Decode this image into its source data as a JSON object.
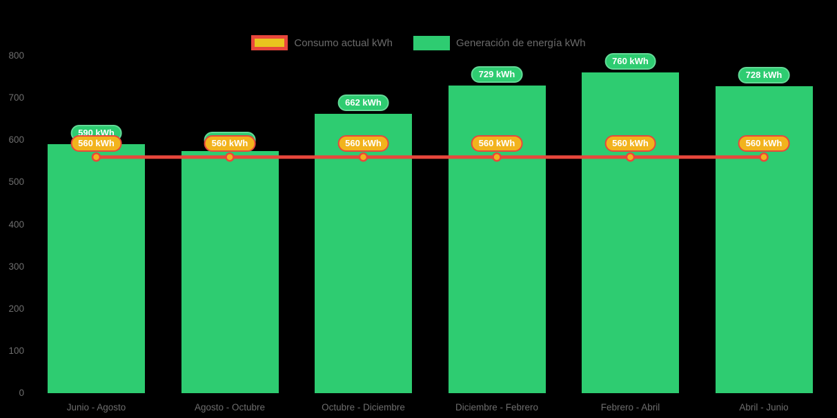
{
  "legend": {
    "items": [
      {
        "label": "Consumo actual kWh",
        "swatch": "red-bordered-amber-rect"
      },
      {
        "label": "Generación de energía kWh",
        "swatch": "green-rect"
      }
    ]
  },
  "chart_data": {
    "type": "bar+line",
    "unit": "kWh",
    "categories": [
      "Junio - Agosto",
      "Agosto - Octubre",
      "Octubre - Diciembre",
      "Diciembre - Febrero",
      "Febrero - Abril",
      "Abril - Junio"
    ],
    "series": [
      {
        "name": "Generación de energía kWh",
        "type": "bar",
        "values": [
          590,
          574,
          662,
          729,
          760,
          728
        ],
        "labels": [
          "590 kWh",
          "574 kWh",
          "662 kWh",
          "729 kWh",
          "760 kWh",
          "728 kWh"
        ],
        "color": "#2ecc71"
      },
      {
        "name": "Consumo actual kWh",
        "type": "line",
        "values": [
          560,
          560,
          560,
          560,
          560,
          560
        ],
        "labels": [
          "560 kWh",
          "560 kWh",
          "560 kWh",
          "560 kWh",
          "560 kWh",
          "560 kWh"
        ],
        "line_color": "#e8473c",
        "point_color": "#f2b31d"
      }
    ],
    "y_ticks": [
      0,
      100,
      200,
      300,
      400,
      500,
      600,
      700,
      800
    ],
    "ylim": [
      0,
      800
    ],
    "grid": false,
    "legend_position": "top",
    "background": "#000000"
  },
  "colors": {
    "bar_green": "#2ecc71",
    "pill_green_border": "#63da97",
    "line_red": "#e8473c",
    "amber": "#f2b31d",
    "axis_text": "#6e6e6e",
    "pill_text": "#ffffff"
  }
}
